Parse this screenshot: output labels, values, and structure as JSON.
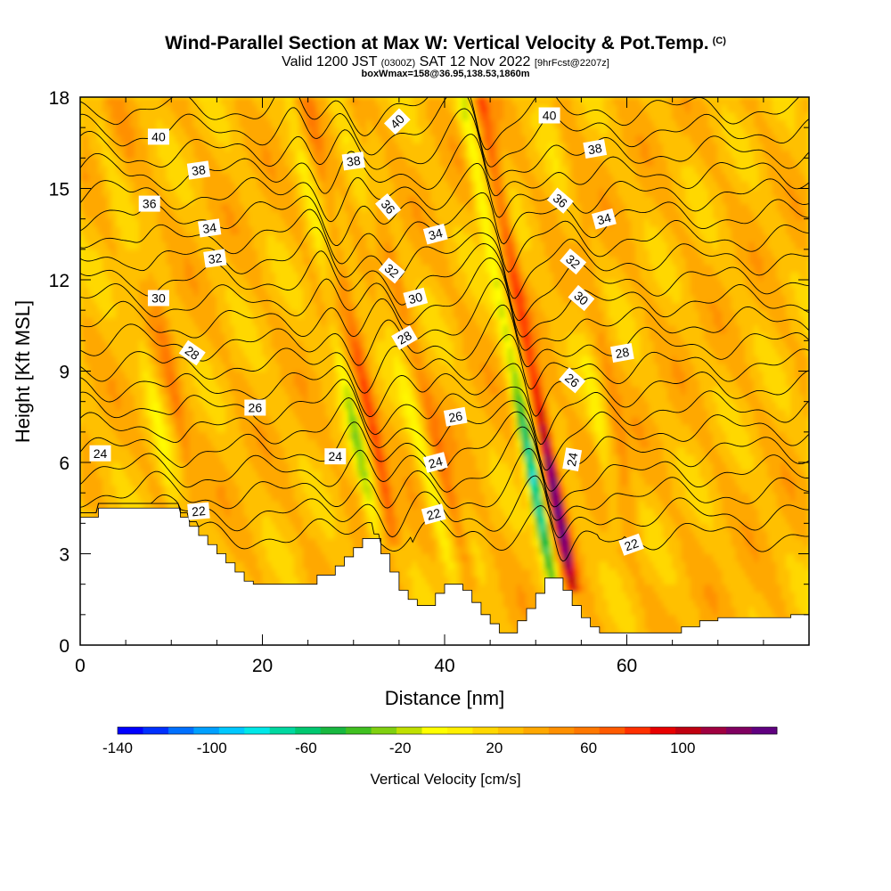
{
  "header": {
    "title": "Wind-Parallel Section at Max W: Vertical Velocity & Pot.Temp.",
    "copyright": "(C)",
    "valid_a": "Valid 1200 JST",
    "valid_b": "(0300Z)",
    "valid_c": "SAT 12 Nov 2022",
    "valid_d": "[9hrFcst@2207z]",
    "box_line": "boxWmax=158@36.95,138.53,1860m"
  },
  "chart_data": {
    "type": "heatmap",
    "xlabel": "Distance [nm]",
    "ylabel": "Height [Kft MSL]",
    "xlim": [
      0,
      80
    ],
    "ylim": [
      0,
      18
    ],
    "x_ticks": [
      0,
      20,
      40,
      60
    ],
    "y_ticks": [
      0,
      3,
      6,
      9,
      12,
      15,
      18
    ],
    "colorbar": {
      "label": "Vertical Velocity [cm/s]",
      "min": -140,
      "max": 140,
      "step": 10,
      "tick_labels": [
        -140,
        -100,
        -60,
        -20,
        20,
        60,
        100
      ],
      "colors": [
        "#0000ff",
        "#0030ff",
        "#0070ff",
        "#00a0ff",
        "#00c8ff",
        "#00e8e8",
        "#00d8a0",
        "#00c870",
        "#18b840",
        "#40c020",
        "#80d010",
        "#c0e000",
        "#ffff00",
        "#fff000",
        "#ffd800",
        "#ffc000",
        "#ffa800",
        "#ff9000",
        "#ff7800",
        "#ff5a00",
        "#ff3000",
        "#e80000",
        "#c00010",
        "#a00040",
        "#800060",
        "#600080"
      ]
    },
    "terrain_kft": [
      [
        0,
        4.2
      ],
      [
        2,
        4.2
      ],
      [
        2,
        4.5
      ],
      [
        11,
        4.5
      ],
      [
        11,
        4.2
      ],
      [
        12,
        4.2
      ],
      [
        12,
        3.9
      ],
      [
        13,
        3.9
      ],
      [
        13,
        3.6
      ],
      [
        14,
        3.6
      ],
      [
        14,
        3.3
      ],
      [
        15,
        3.3
      ],
      [
        15,
        3.0
      ],
      [
        16,
        3.0
      ],
      [
        16,
        2.7
      ],
      [
        17,
        2.7
      ],
      [
        17,
        2.4
      ],
      [
        18,
        2.4
      ],
      [
        18,
        2.1
      ],
      [
        19,
        2.1
      ],
      [
        19,
        2.0
      ],
      [
        26,
        2.0
      ],
      [
        26,
        2.3
      ],
      [
        28,
        2.3
      ],
      [
        28,
        2.6
      ],
      [
        29,
        2.6
      ],
      [
        29,
        2.9
      ],
      [
        30,
        2.9
      ],
      [
        30,
        3.2
      ],
      [
        31,
        3.2
      ],
      [
        31,
        3.5
      ],
      [
        33,
        3.5
      ],
      [
        33,
        3.0
      ],
      [
        34,
        3.0
      ],
      [
        34,
        2.4
      ],
      [
        35,
        2.4
      ],
      [
        35,
        1.8
      ],
      [
        36,
        1.8
      ],
      [
        36,
        1.5
      ],
      [
        37,
        1.5
      ],
      [
        37,
        1.3
      ],
      [
        39,
        1.3
      ],
      [
        39,
        1.7
      ],
      [
        40,
        1.7
      ],
      [
        40,
        2.0
      ],
      [
        42,
        2.0
      ],
      [
        42,
        1.8
      ],
      [
        43,
        1.8
      ],
      [
        43,
        1.4
      ],
      [
        44,
        1.4
      ],
      [
        44,
        1.0
      ],
      [
        45,
        1.0
      ],
      [
        45,
        0.7
      ],
      [
        46,
        0.7
      ],
      [
        46,
        0.4
      ],
      [
        48,
        0.4
      ],
      [
        48,
        0.8
      ],
      [
        49,
        0.8
      ],
      [
        49,
        1.2
      ],
      [
        50,
        1.2
      ],
      [
        50,
        1.7
      ],
      [
        51,
        1.7
      ],
      [
        51,
        2.2
      ],
      [
        53,
        2.2
      ],
      [
        53,
        1.8
      ],
      [
        54,
        1.8
      ],
      [
        54,
        1.3
      ],
      [
        55,
        1.3
      ],
      [
        55,
        0.9
      ],
      [
        56,
        0.9
      ],
      [
        56,
        0.6
      ],
      [
        57,
        0.6
      ],
      [
        57,
        0.4
      ],
      [
        66,
        0.4
      ],
      [
        66,
        0.6
      ],
      [
        68,
        0.6
      ],
      [
        68,
        0.8
      ],
      [
        70,
        0.8
      ],
      [
        70,
        0.9
      ],
      [
        78,
        0.9
      ],
      [
        78,
        1.0
      ],
      [
        80,
        1.0
      ]
    ],
    "wave_bands": [
      {
        "x_base": 11.5,
        "z_base": 4.5,
        "x_top": 3.0,
        "w": 22,
        "shift": 1.2
      },
      {
        "x_base": 33.5,
        "z_base": 3.5,
        "x_top": 24.0,
        "w": 48,
        "shift": 1.0
      },
      {
        "x_base": 42.0,
        "z_base": 2.0,
        "x_top": 29.0,
        "w": 32,
        "shift": 1.0
      },
      {
        "x_base": 53.0,
        "z_base": 2.0,
        "x_top": 43.0,
        "w": 110,
        "shift": 1.05
      },
      {
        "x_base": 60.0,
        "z_base": 3.5,
        "x_top": 52.0,
        "w": 18,
        "shift": 1.0
      }
    ],
    "theta_contours": {
      "levels_min": 21,
      "levels_max": 41,
      "step": 1,
      "units": "K (offset)",
      "labels": [
        {
          "v": "40",
          "x": 8.6,
          "z": 16.7,
          "r": 0
        },
        {
          "v": "38",
          "x": 13.0,
          "z": 15.6,
          "r": -8
        },
        {
          "v": "36",
          "x": 7.6,
          "z": 14.5,
          "r": 0
        },
        {
          "v": "34",
          "x": 14.2,
          "z": 13.7,
          "r": -8
        },
        {
          "v": "32",
          "x": 14.8,
          "z": 12.7,
          "r": -8
        },
        {
          "v": "30",
          "x": 8.6,
          "z": 11.4,
          "r": 0
        },
        {
          "v": "28",
          "x": 12.3,
          "z": 9.6,
          "r": 35
        },
        {
          "v": "26",
          "x": 19.2,
          "z": 7.8,
          "r": 0
        },
        {
          "v": "24",
          "x": 2.2,
          "z": 6.3,
          "r": 0
        },
        {
          "v": "22",
          "x": 13.0,
          "z": 4.4,
          "r": -5
        },
        {
          "v": "24",
          "x": 28.0,
          "z": 6.2,
          "r": 0
        },
        {
          "v": "40",
          "x": 34.8,
          "z": 17.2,
          "r": -45
        },
        {
          "v": "38",
          "x": 30.0,
          "z": 15.9,
          "r": -8
        },
        {
          "v": "36",
          "x": 33.8,
          "z": 14.4,
          "r": 50
        },
        {
          "v": "34",
          "x": 39.0,
          "z": 13.5,
          "r": -15
        },
        {
          "v": "32",
          "x": 34.2,
          "z": 12.3,
          "r": 40
        },
        {
          "v": "30",
          "x": 36.8,
          "z": 11.4,
          "r": -15
        },
        {
          "v": "28",
          "x": 35.6,
          "z": 10.1,
          "r": -30
        },
        {
          "v": "26",
          "x": 41.2,
          "z": 7.5,
          "r": -10
        },
        {
          "v": "24",
          "x": 39.0,
          "z": 6.0,
          "r": -15
        },
        {
          "v": "22",
          "x": 38.8,
          "z": 4.3,
          "r": -15
        },
        {
          "v": "40",
          "x": 51.5,
          "z": 17.4,
          "r": 0
        },
        {
          "v": "38",
          "x": 56.5,
          "z": 16.3,
          "r": -10
        },
        {
          "v": "36",
          "x": 52.7,
          "z": 14.6,
          "r": 40
        },
        {
          "v": "34",
          "x": 57.5,
          "z": 14.0,
          "r": -15
        },
        {
          "v": "32",
          "x": 54.1,
          "z": 12.6,
          "r": 40
        },
        {
          "v": "30",
          "x": 55.0,
          "z": 11.4,
          "r": 40
        },
        {
          "v": "28",
          "x": 59.5,
          "z": 9.6,
          "r": -10
        },
        {
          "v": "26",
          "x": 54.0,
          "z": 8.7,
          "r": 40
        },
        {
          "v": "24",
          "x": 54.0,
          "z": 6.1,
          "r": -80
        },
        {
          "v": "22",
          "x": 60.5,
          "z": 3.3,
          "r": -20
        }
      ]
    }
  },
  "colors": {
    "background": "#ffff00",
    "terrain": "#ffffff",
    "contour": "#000000"
  }
}
